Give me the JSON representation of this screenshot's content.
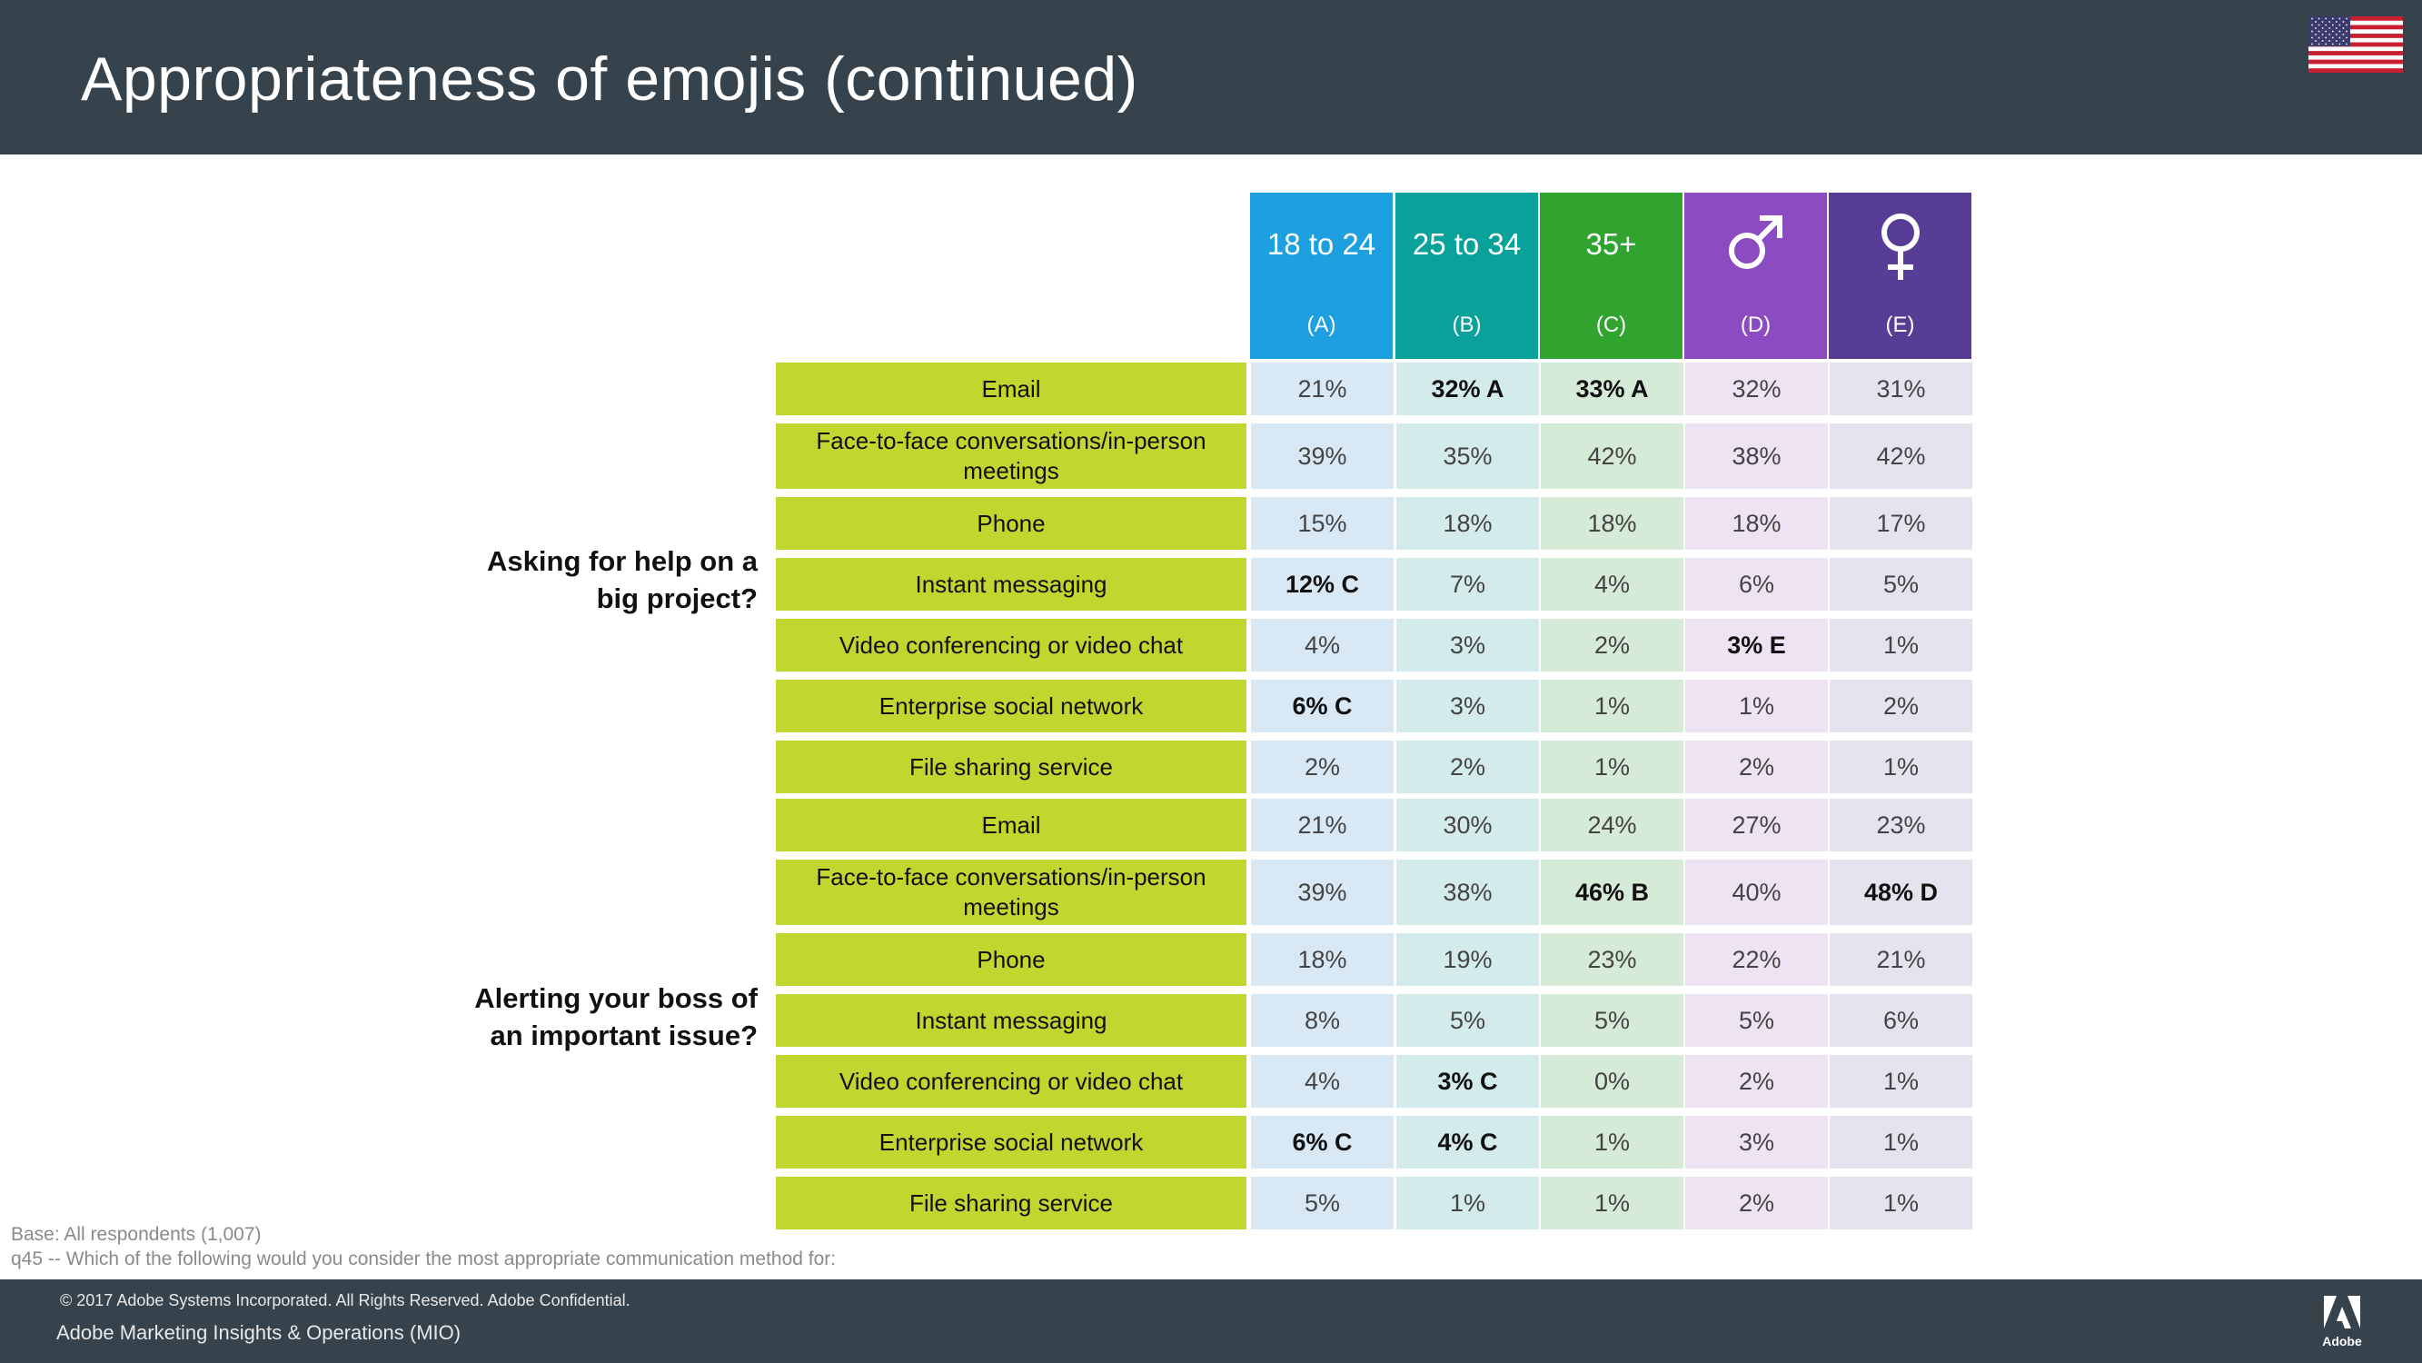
{
  "header": {
    "title": "Appropriateness of emojis (continued)",
    "flag_icon": "us-flag-icon"
  },
  "columns": [
    {
      "label": "18 to 24",
      "code": "(A)",
      "color": "#1ea0e0",
      "icon": null
    },
    {
      "label": "25 to 34",
      "code": "(B)",
      "color": "#08a29a",
      "icon": null
    },
    {
      "label": "35+",
      "code": "(C)",
      "color": "#30a42e",
      "icon": null
    },
    {
      "label": "",
      "code": "(D)",
      "color": "#8a4cc0",
      "icon": "male-symbol-icon"
    },
    {
      "label": "",
      "code": "(E)",
      "color": "#573d96",
      "icon": "female-symbol-icon"
    }
  ],
  "column_bg": [
    "#d8e9f5",
    "#d3ebea",
    "#d6ead8",
    "#ede3f3",
    "#e6e3ef"
  ],
  "groups": [
    {
      "question": [
        "Asking for help on a",
        "big project?"
      ],
      "rows": [
        {
          "label": "Email",
          "values": [
            {
              "v": "21%",
              "b": false
            },
            {
              "v": "32% A",
              "b": true
            },
            {
              "v": "33% A",
              "b": true
            },
            {
              "v": "32%",
              "b": false
            },
            {
              "v": "31%",
              "b": false
            }
          ]
        },
        {
          "label": "Face-to-face conversations/in-person meetings",
          "values": [
            {
              "v": "39%",
              "b": false
            },
            {
              "v": "35%",
              "b": false
            },
            {
              "v": "42%",
              "b": false
            },
            {
              "v": "38%",
              "b": false
            },
            {
              "v": "42%",
              "b": false
            }
          ]
        },
        {
          "label": "Phone",
          "values": [
            {
              "v": "15%",
              "b": false
            },
            {
              "v": "18%",
              "b": false
            },
            {
              "v": "18%",
              "b": false
            },
            {
              "v": "18%",
              "b": false
            },
            {
              "v": "17%",
              "b": false
            }
          ]
        },
        {
          "label": "Instant messaging",
          "values": [
            {
              "v": "12% C",
              "b": true
            },
            {
              "v": "7%",
              "b": false
            },
            {
              "v": "4%",
              "b": false
            },
            {
              "v": "6%",
              "b": false
            },
            {
              "v": "5%",
              "b": false
            }
          ]
        },
        {
          "label": "Video conferencing or video chat",
          "values": [
            {
              "v": "4%",
              "b": false
            },
            {
              "v": "3%",
              "b": false
            },
            {
              "v": "2%",
              "b": false
            },
            {
              "v": "3% E",
              "b": true
            },
            {
              "v": "1%",
              "b": false
            }
          ]
        },
        {
          "label": "Enterprise social network",
          "values": [
            {
              "v": "6% C",
              "b": true
            },
            {
              "v": "3%",
              "b": false
            },
            {
              "v": "1%",
              "b": false
            },
            {
              "v": "1%",
              "b": false
            },
            {
              "v": "2%",
              "b": false
            }
          ]
        },
        {
          "label": "File sharing service",
          "values": [
            {
              "v": "2%",
              "b": false
            },
            {
              "v": "2%",
              "b": false
            },
            {
              "v": "1%",
              "b": false
            },
            {
              "v": "2%",
              "b": false
            },
            {
              "v": "1%",
              "b": false
            }
          ]
        }
      ]
    },
    {
      "question": [
        "Alerting your boss of",
        "an important issue?"
      ],
      "rows": [
        {
          "label": "Email",
          "values": [
            {
              "v": "21%",
              "b": false
            },
            {
              "v": "30%",
              "b": false
            },
            {
              "v": "24%",
              "b": false
            },
            {
              "v": "27%",
              "b": false
            },
            {
              "v": "23%",
              "b": false
            }
          ]
        },
        {
          "label": "Face-to-face conversations/in-person meetings",
          "values": [
            {
              "v": "39%",
              "b": false
            },
            {
              "v": "38%",
              "b": false
            },
            {
              "v": "46% B",
              "b": true
            },
            {
              "v": "40%",
              "b": false
            },
            {
              "v": "48% D",
              "b": true
            }
          ]
        },
        {
          "label": "Phone",
          "values": [
            {
              "v": "18%",
              "b": false
            },
            {
              "v": "19%",
              "b": false
            },
            {
              "v": "23%",
              "b": false
            },
            {
              "v": "22%",
              "b": false
            },
            {
              "v": "21%",
              "b": false
            }
          ]
        },
        {
          "label": "Instant messaging",
          "values": [
            {
              "v": "8%",
              "b": false
            },
            {
              "v": "5%",
              "b": false
            },
            {
              "v": "5%",
              "b": false
            },
            {
              "v": "5%",
              "b": false
            },
            {
              "v": "6%",
              "b": false
            }
          ]
        },
        {
          "label": "Video conferencing or video chat",
          "values": [
            {
              "v": "4%",
              "b": false
            },
            {
              "v": "3% C",
              "b": true
            },
            {
              "v": "0%",
              "b": false
            },
            {
              "v": "2%",
              "b": false
            },
            {
              "v": "1%",
              "b": false
            }
          ]
        },
        {
          "label": "Enterprise social network",
          "values": [
            {
              "v": "6% C",
              "b": true
            },
            {
              "v": "4% C",
              "b": true
            },
            {
              "v": "1%",
              "b": false
            },
            {
              "v": "3%",
              "b": false
            },
            {
              "v": "1%",
              "b": false
            }
          ]
        },
        {
          "label": "File sharing service",
          "values": [
            {
              "v": "5%",
              "b": false
            },
            {
              "v": "1%",
              "b": false
            },
            {
              "v": "1%",
              "b": false
            },
            {
              "v": "2%",
              "b": false
            },
            {
              "v": "1%",
              "b": false
            }
          ]
        }
      ]
    }
  ],
  "notes": {
    "base": "Base: All respondents (1,007)",
    "question": "q45 --  Which of the following would you consider the most appropriate communication method for:"
  },
  "footer": {
    "copyright": "© 2017 Adobe Systems Incorporated.  All Rights Reserved.  Adobe Confidential.",
    "department": "Adobe Marketing Insights & Operations (MIO)",
    "logo_text": "Adobe",
    "logo_icon": "adobe-logo-icon"
  }
}
